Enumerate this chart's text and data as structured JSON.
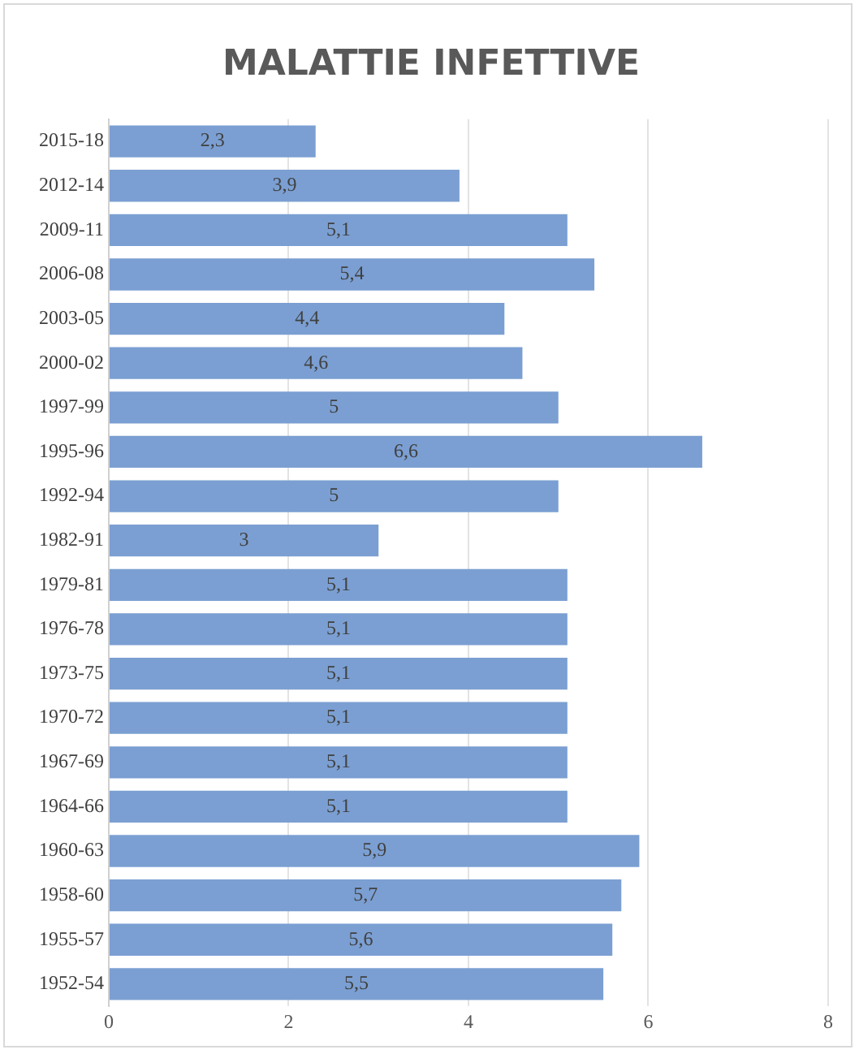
{
  "chart_data": {
    "type": "bar",
    "orientation": "horizontal",
    "title": "MALATTIE INFETTIVE",
    "categories": [
      "2015-18",
      "2012-14",
      "2009-11",
      "2006-08",
      "2003-05",
      "2000-02",
      "1997-99",
      "1995-96",
      "1992-94",
      "1982-91",
      "1979-81",
      "1976-78",
      "1973-75",
      "1970-72",
      "1967-69",
      "1964-66",
      "1960-63",
      "1958-60",
      "1955-57",
      "1952-54"
    ],
    "values": [
      2.3,
      3.9,
      5.1,
      5.4,
      4.4,
      4.6,
      5,
      6.6,
      5,
      3,
      5.1,
      5.1,
      5.1,
      5.1,
      5.1,
      5.1,
      5.9,
      5.7,
      5.6,
      5.5
    ],
    "value_labels": [
      "2,3",
      "3,9",
      "5,1",
      "5,4",
      "4,4",
      "4,6",
      "5",
      "6,6",
      "5",
      "3",
      "5,1",
      "5,1",
      "5,1",
      "5,1",
      "5,1",
      "5,1",
      "5,9",
      "5,7",
      "5,6",
      "5,5"
    ],
    "color": "#7b9fd2",
    "xlim": [
      0,
      8
    ],
    "xticks": [
      0,
      2,
      4,
      6,
      8
    ],
    "grid": "x"
  }
}
